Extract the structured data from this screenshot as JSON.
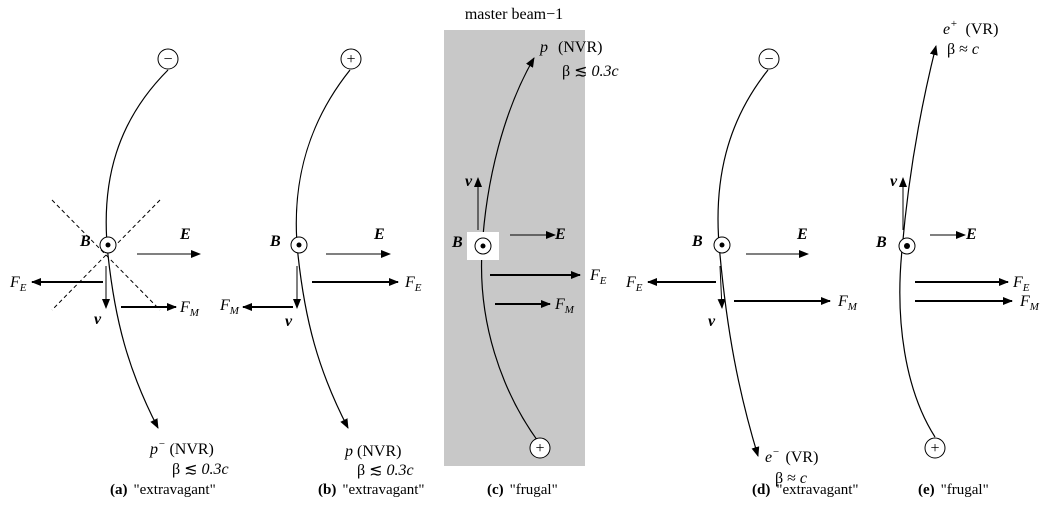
{
  "header": {
    "text": "master beam−1"
  },
  "labels": {
    "B": "B",
    "E": "E",
    "v": "v",
    "F": "F",
    "sub_E": "E",
    "sub_M": "M",
    "sign_minus": "−",
    "sign_plus": "+"
  },
  "panels": [
    {
      "id": "a",
      "particle_base": "p",
      "particle_sup": "−",
      "regime": "(NVR)",
      "beta_prefix": "β ≲ ",
      "beta_value": "0.3c",
      "caption_letter": "(a)",
      "caption_text": "\"extravagant\""
    },
    {
      "id": "b",
      "particle_base": "p",
      "particle_sup": "",
      "regime": "(NVR)",
      "beta_prefix": "β ≲ ",
      "beta_value": "0.3c",
      "caption_letter": "(b)",
      "caption_text": "\"extravagant\""
    },
    {
      "id": "c",
      "particle_base": "p",
      "particle_sup": "",
      "regime": "(NVR)",
      "beta_prefix": "β ≲ ",
      "beta_value": "0.3c",
      "caption_letter": "(c)",
      "caption_text": "\"frugal\""
    },
    {
      "id": "d",
      "particle_base": "e",
      "particle_sup": "−",
      "regime": "(VR)",
      "beta_prefix": "β ≈ ",
      "beta_value": "c",
      "caption_letter": "(d)",
      "caption_text": "\"extravagant\""
    },
    {
      "id": "e",
      "particle_base": "e",
      "particle_sup": "+",
      "regime": "(VR)",
      "beta_prefix": "β ≈ ",
      "beta_value": "c",
      "caption_letter": "(e)",
      "caption_text": "\"frugal\""
    }
  ],
  "colors": {
    "shade": "#c8c8c8",
    "ink": "#000000"
  }
}
